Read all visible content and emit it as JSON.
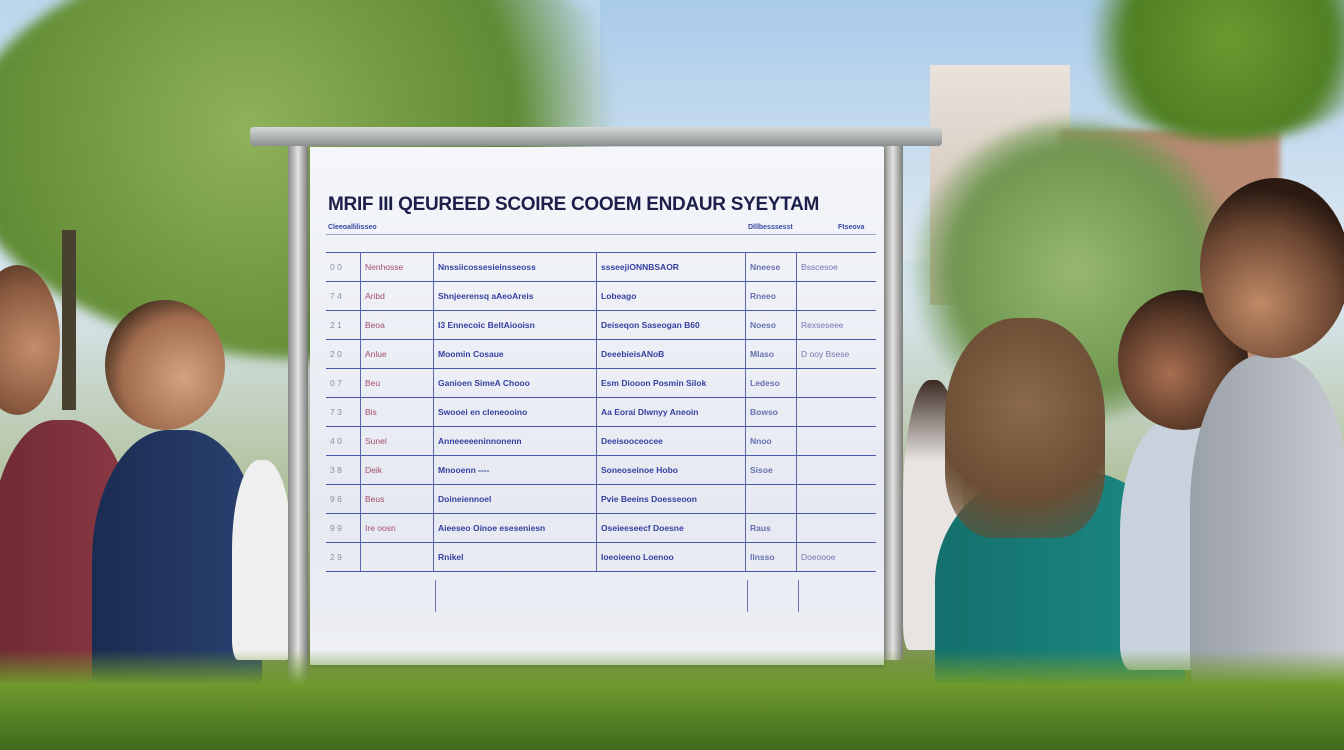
{
  "board": {
    "title": "MRIF III QEUREED SCOIRE COOEM ENDAUR SYEYTAM",
    "subheaders": [
      "Cleeoallilisseo",
      "Dlllbesssesst",
      "Ftseova"
    ],
    "rows": [
      [
        "0 0",
        "Nenhosse",
        "Nnssiicossesieinsseoss",
        "ssseejiONNBSAOR",
        "Nneese",
        "Bsscesoe"
      ],
      [
        "7 4",
        "Aribd",
        "Shnjeerensq aAeoAreis",
        "Lobeago",
        "Rneeo",
        ""
      ],
      [
        "2 1",
        "Beoa",
        "I3 Ennecoic BeltAiooisn",
        "Deiseqon Saseogan B60",
        "Noeso",
        "Rexseseee"
      ],
      [
        "2 0",
        "Anlue",
        "Moomin Cosaue",
        "DeeebieisANoB",
        "Mlaso",
        "D ooy Bsese"
      ],
      [
        "0 7",
        "Beu",
        "Ganioen SimeA Chooo",
        "Esm Diooon Posmin Silok",
        "Ledeso",
        ""
      ],
      [
        "7 3",
        "Bis",
        "Swooei en cleneooino",
        "Aa Eorai Dlwnyy Aneoin",
        "Bowso",
        ""
      ],
      [
        "4 0",
        "Sunel",
        "Anneeeeeninnonenn",
        "Deeisooceocee",
        "Nnoo",
        ""
      ],
      [
        "3 8",
        "Deik",
        "Mnooenn ----",
        "Soneoseinoe Hobo",
        "Sisoe",
        ""
      ],
      [
        "9 6",
        "Beus",
        "Doineiennoel",
        "Pvie Beeins Doesseoon",
        "",
        ""
      ],
      [
        "9 9",
        "Ire oosn",
        "Aieeseo Oinoe eseseniesn",
        "Oseieeseecf Doesne",
        "Raus",
        ""
      ],
      [
        "2 9",
        "",
        "Rnikel",
        "Ioeoieeno Loenoo",
        "Ilnsso",
        "Doeoooe"
      ]
    ]
  },
  "colors": {
    "board_text": "#1b1f4a",
    "table_ink": "#3640a0",
    "sky": "#a9cbea",
    "foliage": "#6f9a2e"
  }
}
